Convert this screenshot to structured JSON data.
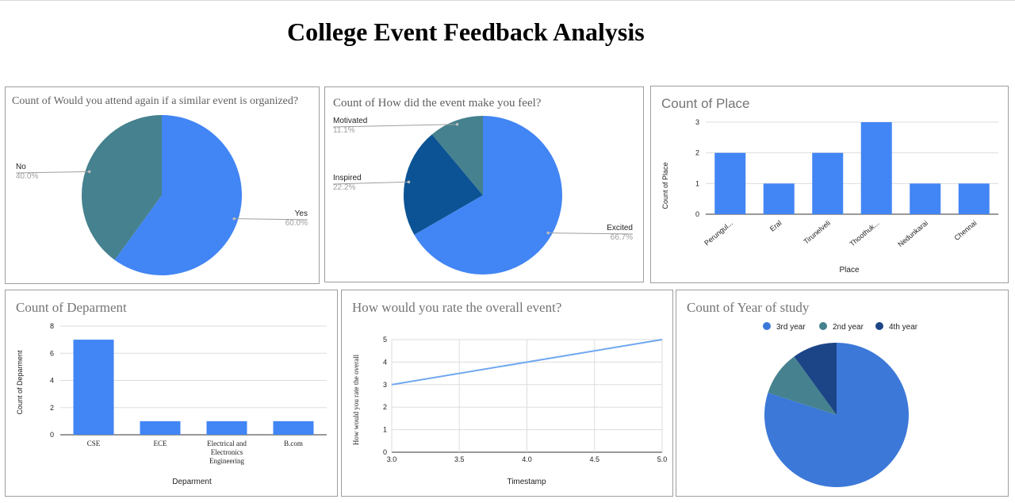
{
  "page": {
    "title": "College Event Feedback Analysis"
  },
  "chart_data": [
    {
      "id": "attend-again",
      "type": "pie",
      "title": "Count of Would you attend again if a similar event is organized?",
      "slices": [
        {
          "label": "Yes",
          "value": 60.0,
          "pct_label": "60.0%",
          "color": "#4285f4"
        },
        {
          "label": "No",
          "value": 40.0,
          "pct_label": "40.0%",
          "color": "#45818e"
        }
      ]
    },
    {
      "id": "event-feel",
      "type": "pie",
      "title": "Count of How did the event make you feel?",
      "slices": [
        {
          "label": "Excited",
          "value": 66.7,
          "pct_label": "66.7%",
          "color": "#4285f4"
        },
        {
          "label": "Inspired",
          "value": 22.2,
          "pct_label": "22.2%",
          "color": "#0b5394"
        },
        {
          "label": "Motivated",
          "value": 11.1,
          "pct_label": "11.1%",
          "color": "#45818e"
        }
      ]
    },
    {
      "id": "place",
      "type": "bar",
      "title": "Count of Place",
      "categories": [
        "Perungul...",
        "Eral",
        "Tirunelveli",
        "Thoothuk...",
        "Nedunkarai",
        "Chennai"
      ],
      "values": [
        2,
        1,
        2,
        3,
        1,
        1
      ],
      "xlabel": "Place",
      "ylabel": "Count of Place",
      "ylim": [
        0,
        3
      ],
      "yticks": [
        "0",
        "1",
        "2",
        "3"
      ],
      "grid": true,
      "color": "#4285f4"
    },
    {
      "id": "department",
      "type": "bar",
      "title": "Count of Deparment",
      "categories": [
        "CSE",
        "ECE",
        "Electrical and Electronics Engineering",
        "B.com"
      ],
      "values": [
        7,
        1,
        1,
        1
      ],
      "xlabel": "Deparment",
      "ylabel": "Count of Deparment",
      "ylim": [
        0,
        8
      ],
      "yticks": [
        "0",
        "2",
        "4",
        "6",
        "8"
      ],
      "grid": true,
      "color": "#4285f4"
    },
    {
      "id": "overall-rating",
      "type": "line",
      "title": "How would you rate the overall event?",
      "x": [
        3.0,
        5.0
      ],
      "y": [
        3,
        5
      ],
      "xlabel": "Timestamp",
      "ylabel": "How would you rate the overall",
      "xlim": [
        3.0,
        5.0
      ],
      "ylim": [
        0,
        5
      ],
      "xticks": [
        "3.0",
        "3.5",
        "4.0",
        "4.5",
        "5.0"
      ],
      "yticks": [
        "0",
        "1",
        "2",
        "3",
        "4",
        "5"
      ],
      "grid": true,
      "color": "#6fa8f0"
    },
    {
      "id": "year-of-study",
      "type": "pie",
      "title": "Count of Year of study",
      "legend": "top",
      "slices": [
        {
          "label": "3rd year",
          "value": 80,
          "color": "#3c78d8"
        },
        {
          "label": "2nd year",
          "value": 10,
          "color": "#45818e"
        },
        {
          "label": "4th year",
          "value": 10,
          "color": "#1c4587"
        }
      ]
    }
  ]
}
